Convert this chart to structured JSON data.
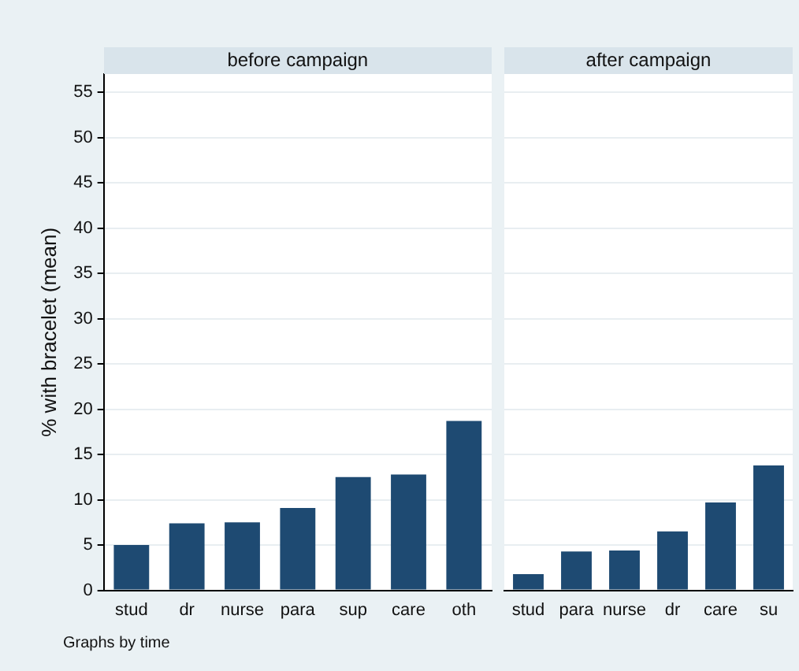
{
  "chart_data": [
    {
      "type": "bar",
      "title": "before campaign",
      "ylabel": "% with bracelet (mean)",
      "categories": [
        "stud",
        "dr",
        "nurse",
        "para",
        "sup",
        "care",
        "oth"
      ],
      "values": [
        5.0,
        7.4,
        7.5,
        9.1,
        12.5,
        12.8,
        18.7
      ],
      "color": "#1e4a72",
      "ylim": [
        0,
        57
      ],
      "yticks": [
        0,
        5,
        10,
        15,
        20,
        25,
        30,
        35,
        40,
        45,
        50,
        55
      ],
      "grid": "y",
      "annotations": [
        "Graphs by time"
      ]
    },
    {
      "type": "bar",
      "title": "after campaign",
      "categories": [
        "stud",
        "para",
        "nurse",
        "dr",
        "care",
        "su"
      ],
      "values": [
        1.8,
        4.3,
        4.4,
        6.5,
        9.7,
        13.8
      ],
      "color": "#1e4a72",
      "ylim": [
        0,
        57
      ],
      "yticks": [
        0,
        5,
        10,
        15,
        20,
        25,
        30,
        35,
        40,
        45,
        50,
        55
      ],
      "grid": "y",
      "tick_labels": "x"
    }
  ]
}
